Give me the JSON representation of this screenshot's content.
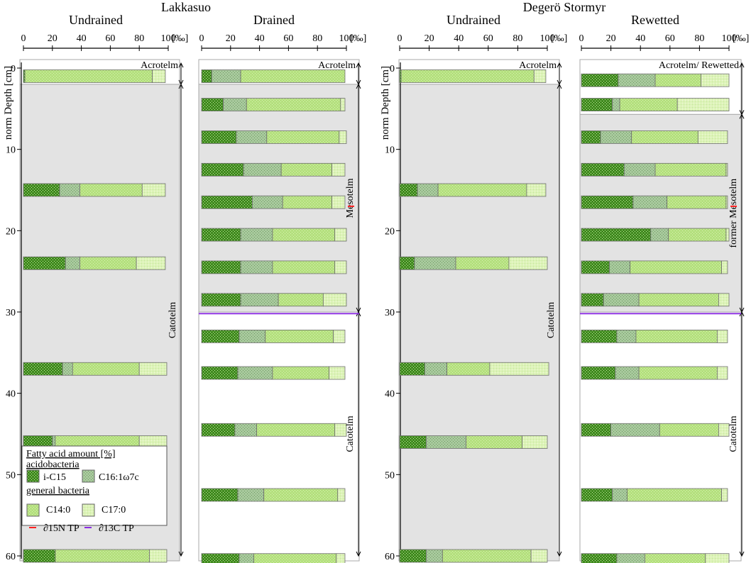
{
  "figure": {
    "site_titles": [
      "Lakkasuo",
      "Degerö Stormyr"
    ],
    "y_axis_label": "norm Depth [cm]",
    "x_unit": "[‰]",
    "legend": {
      "title": "Fatty acid amount [%]",
      "group1": "acidobacteria",
      "group2": "general bacteria",
      "items": [
        {
          "key": "iC15",
          "label": "i-C15"
        },
        {
          "key": "C16",
          "label": "C16:1ω7c"
        },
        {
          "key": "C14",
          "label": "C14:0"
        },
        {
          "key": "C17",
          "label": "C17:0"
        }
      ],
      "tp_n": "∂15N TP",
      "tp_c": "∂13C TP"
    }
  },
  "colors": {
    "iC15": "#3f8a1e",
    "C16": "#a6c79b",
    "C14": "#b4e07e",
    "C17": "#dcf2b6",
    "shade": "#e3e3e3",
    "n_tp": "#ff2020",
    "c_tp": "#8a2be2"
  },
  "chart_data": [
    {
      "type": "stacked-horizontal-bar",
      "site": "Lakkasuo",
      "title": "Undrained",
      "x_ticks": [
        0,
        20,
        40,
        60,
        80,
        100
      ],
      "xlim": [
        0,
        100
      ],
      "ylim": [
        0,
        60
      ],
      "y_ticks": [
        0,
        10,
        20,
        30,
        40,
        50,
        60
      ],
      "y_ticks_shown": true,
      "zones": [
        {
          "label": "Acrotelm",
          "top": -1,
          "bottom": 2,
          "shaded": false
        },
        {
          "label": "Catotelm",
          "top": 2,
          "bottom": 60,
          "shaded": true
        }
      ],
      "turning_points": [],
      "bars": [
        {
          "depth": 1,
          "iC15": 1,
          "C16": 0,
          "C14": 88,
          "C17": 9
        },
        {
          "depth": 15,
          "iC15": 25,
          "C16": 14,
          "C14": 43,
          "C17": 16
        },
        {
          "depth": 24,
          "iC15": 29,
          "C16": 10,
          "C14": 39,
          "C17": 20
        },
        {
          "depth": 37,
          "iC15": 27,
          "C16": 7,
          "C14": 46,
          "C17": 19
        },
        {
          "depth": 46,
          "iC15": 20,
          "C16": 2,
          "C14": 58,
          "C17": 19
        },
        {
          "depth": 60,
          "iC15": 22,
          "C16": 0,
          "C14": 65,
          "C17": 12
        }
      ]
    },
    {
      "type": "stacked-horizontal-bar",
      "site": "Lakkasuo",
      "title": "Drained",
      "x_ticks": [
        0,
        20,
        40,
        60,
        80,
        100
      ],
      "xlim": [
        0,
        100
      ],
      "ylim": [
        0,
        60
      ],
      "y_ticks": [
        0,
        10,
        20,
        30,
        40,
        50,
        60
      ],
      "y_ticks_shown": false,
      "zones": [
        {
          "label": "Acrotelm",
          "top": -1,
          "bottom": 2,
          "shaded": false
        },
        {
          "label": "Mesotelm",
          "top": 2,
          "bottom": 30,
          "shaded": true
        },
        {
          "label": "Catotelm",
          "top": 30,
          "bottom": 60,
          "shaded": false
        }
      ],
      "turning_points": [
        {
          "type": "N",
          "depth": 17,
          "label": "∂15N TP"
        },
        {
          "type": "C",
          "depth": 30.2,
          "label": "∂13C TP"
        }
      ],
      "bars": [
        {
          "depth": 1,
          "iC15": 7,
          "C16": 20,
          "C14": 72,
          "C17": 0
        },
        {
          "depth": 4.5,
          "iC15": 15,
          "C16": 16,
          "C14": 65,
          "C17": 3
        },
        {
          "depth": 8.5,
          "iC15": 24,
          "C16": 21,
          "C14": 50,
          "C17": 5
        },
        {
          "depth": 12.5,
          "iC15": 29,
          "C16": 26,
          "C14": 35,
          "C17": 9
        },
        {
          "depth": 16.5,
          "iC15": 35,
          "C16": 21,
          "C14": 34,
          "C17": 9
        },
        {
          "depth": 20.5,
          "iC15": 27,
          "C16": 22,
          "C14": 43,
          "C17": 8
        },
        {
          "depth": 24.5,
          "iC15": 27,
          "C16": 22,
          "C14": 43,
          "C17": 8
        },
        {
          "depth": 28.5,
          "iC15": 27,
          "C16": 26,
          "C14": 31,
          "C17": 16
        },
        {
          "depth": 33,
          "iC15": 26,
          "C16": 18,
          "C14": 47,
          "C17": 8
        },
        {
          "depth": 37.5,
          "iC15": 25,
          "C16": 24,
          "C14": 39,
          "C17": 11
        },
        {
          "depth": 44.5,
          "iC15": 23,
          "C16": 15,
          "C14": 54,
          "C17": 8
        },
        {
          "depth": 52.5,
          "iC15": 25,
          "C16": 18,
          "C14": 51,
          "C17": 5
        },
        {
          "depth": 60.5,
          "iC15": 26,
          "C16": 10,
          "C14": 57,
          "C17": 6
        }
      ]
    },
    {
      "type": "stacked-horizontal-bar",
      "site": "Degerö Stormyr",
      "title": "Undrained",
      "x_ticks": [
        0,
        20,
        40,
        60,
        80,
        100
      ],
      "xlim": [
        0,
        100
      ],
      "ylim": [
        0,
        60
      ],
      "y_ticks": [
        0,
        10,
        20,
        30,
        40,
        50,
        60
      ],
      "y_ticks_shown": true,
      "zones": [
        {
          "label": "Acrotelm",
          "top": -1,
          "bottom": 2,
          "shaded": false
        },
        {
          "label": "Catotelm",
          "top": 2,
          "bottom": 60,
          "shaded": true
        }
      ],
      "turning_points": [],
      "bars": [
        {
          "depth": 1,
          "iC15": 1,
          "C16": 0,
          "C14": 90,
          "C17": 8
        },
        {
          "depth": 15,
          "iC15": 12,
          "C16": 14,
          "C14": 60,
          "C17": 13
        },
        {
          "depth": 24,
          "iC15": 10,
          "C16": 28,
          "C14": 36,
          "C17": 26
        },
        {
          "depth": 37,
          "iC15": 17,
          "C16": 15,
          "C14": 29,
          "C17": 40
        },
        {
          "depth": 46,
          "iC15": 18,
          "C16": 27,
          "C14": 38,
          "C17": 17
        },
        {
          "depth": 60,
          "iC15": 18,
          "C16": 11,
          "C14": 60,
          "C17": 11
        }
      ]
    },
    {
      "type": "stacked-horizontal-bar",
      "site": "Degerö Stormyr",
      "title": "Rewetted",
      "x_ticks": [
        0,
        20,
        40,
        60,
        80,
        100
      ],
      "xlim": [
        0,
        100
      ],
      "ylim": [
        0,
        60
      ],
      "y_ticks": [
        0,
        10,
        20,
        30,
        40,
        50,
        60
      ],
      "y_ticks_shown": false,
      "zones": [
        {
          "label": "Acrotelm/ Rewetted",
          "top": -1,
          "bottom": 5.7,
          "shaded": false
        },
        {
          "label": "former Mesotelm",
          "top": 5.7,
          "bottom": 30,
          "shaded": true
        },
        {
          "label": "Catotelm",
          "top": 30,
          "bottom": 60,
          "shaded": false
        }
      ],
      "turning_points": [
        {
          "type": "N",
          "depth": 17,
          "label": "∂15N TP"
        },
        {
          "type": "C",
          "depth": 30.2,
          "label": "∂13C TP"
        }
      ],
      "bars": [
        {
          "depth": 1.5,
          "iC15": 25,
          "C16": 25,
          "C14": 31,
          "C17": 19
        },
        {
          "depth": 4.5,
          "iC15": 21,
          "C16": 5,
          "C14": 39,
          "C17": 35
        },
        {
          "depth": 8.5,
          "iC15": 13,
          "C16": 21,
          "C14": 45,
          "C17": 20
        },
        {
          "depth": 12.5,
          "iC15": 29,
          "C16": 21,
          "C14": 48,
          "C17": 1
        },
        {
          "depth": 16.5,
          "iC15": 35,
          "C16": 23,
          "C14": 40,
          "C17": 1
        },
        {
          "depth": 20.5,
          "iC15": 47,
          "C16": 12,
          "C14": 39,
          "C17": 2
        },
        {
          "depth": 24.5,
          "iC15": 19,
          "C16": 14,
          "C14": 62,
          "C17": 4
        },
        {
          "depth": 28.5,
          "iC15": 15,
          "C16": 24,
          "C14": 54,
          "C17": 7
        },
        {
          "depth": 33,
          "iC15": 24,
          "C16": 13,
          "C14": 55,
          "C17": 7
        },
        {
          "depth": 37.5,
          "iC15": 23,
          "C16": 16,
          "C14": 53,
          "C17": 7
        },
        {
          "depth": 44.5,
          "iC15": 20,
          "C16": 33,
          "C14": 40,
          "C17": 7
        },
        {
          "depth": 52.5,
          "iC15": 21,
          "C16": 10,
          "C14": 64,
          "C17": 4
        },
        {
          "depth": 60.5,
          "iC15": 24,
          "C16": 19,
          "C14": 41,
          "C17": 16
        }
      ]
    }
  ]
}
